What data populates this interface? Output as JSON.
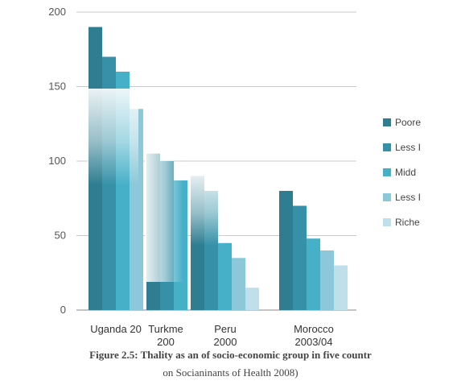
{
  "chart_data": {
    "type": "bar",
    "title": "",
    "xlabel": "",
    "ylabel": "",
    "ylim": [
      0,
      200
    ],
    "yticks": [
      0,
      50,
      100,
      150,
      200
    ],
    "grid": true,
    "legend_position": "right",
    "categories": [
      "Uganda 20",
      "Turkme 200",
      "Peru 2000",
      "Morocco 2003/04"
    ],
    "category_lines": [
      [
        "Uganda 20"
      ],
      [
        "Turkme",
        "200"
      ],
      [
        "Peru",
        "2000"
      ],
      [
        "Morocco",
        "2003/04"
      ]
    ],
    "series": [
      {
        "name": "Poore",
        "color": "#2e7d91",
        "values": [
          190,
          105,
          90,
          80
        ]
      },
      {
        "name": "Less I",
        "color": "#3691a8",
        "values": [
          170,
          100,
          80,
          70
        ]
      },
      {
        "name": "Midd",
        "color": "#46b0c8",
        "values": [
          160,
          87,
          45,
          48
        ]
      },
      {
        "name": "Less I",
        "color": "#8cc8d9",
        "values": [
          135,
          null,
          35,
          40
        ]
      },
      {
        "name": "Riche",
        "color": "#bfe0ea",
        "values": [
          null,
          null,
          15,
          30
        ]
      }
    ]
  },
  "caption": {
    "line1": "Figure 2.5: Thality as an of socio-economic group in five countr",
    "line2": "on Socianinants of Health 2008)"
  }
}
